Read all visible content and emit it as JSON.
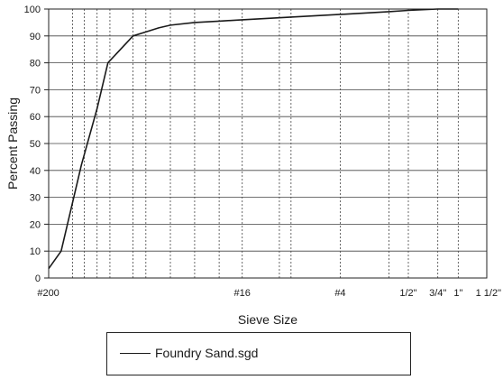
{
  "chart_data": {
    "type": "line",
    "title": "",
    "xlabel": "Sieve Size",
    "ylabel": "Percent Passing",
    "ylim": [
      0,
      100
    ],
    "y_ticks": [
      0,
      10,
      20,
      30,
      40,
      50,
      60,
      70,
      80,
      90,
      100
    ],
    "x_scale": "log",
    "xlim_mm": [
      0.0754,
      38.1
    ],
    "x_tick_labels": [
      {
        "label": "#200",
        "mm": 0.075
      },
      {
        "label": "#16",
        "mm": 1.18
      },
      {
        "label": "#4",
        "mm": 4.75
      },
      {
        "label": "1/2\"",
        "mm": 12.5
      },
      {
        "label": "3/4\"",
        "mm": 19.0
      },
      {
        "label": "1\"",
        "mm": 25.4
      },
      {
        "label": "1 1/2\"",
        "mm": 38.1
      }
    ],
    "sieve_gridlines_mm": [
      0.075,
      0.106,
      0.125,
      0.15,
      0.18,
      0.25,
      0.3,
      0.425,
      0.6,
      0.85,
      1.18,
      2.0,
      2.36,
      4.75,
      9.5,
      12.5,
      19.0,
      25.4,
      38.1
    ],
    "grid": true,
    "legend_placement": "bottom",
    "series": [
      {
        "name": "Foundry Sand.sgd",
        "x": [
          0.0754,
          0.09,
          0.12,
          0.15,
          0.175,
          0.25,
          0.3,
          0.36,
          0.425,
          0.6,
          0.85,
          1.18,
          2.36,
          4.75,
          9.5,
          12.5,
          19.0,
          25.4
        ],
        "y": [
          3.5,
          10,
          42,
          63,
          80,
          90,
          91.5,
          93,
          94,
          95,
          95.5,
          96,
          97,
          98,
          99,
          99.5,
          100,
          100
        ]
      }
    ]
  },
  "colors": {
    "line": "#1a1a1a",
    "grid": "#444444",
    "background": "#ffffff"
  }
}
